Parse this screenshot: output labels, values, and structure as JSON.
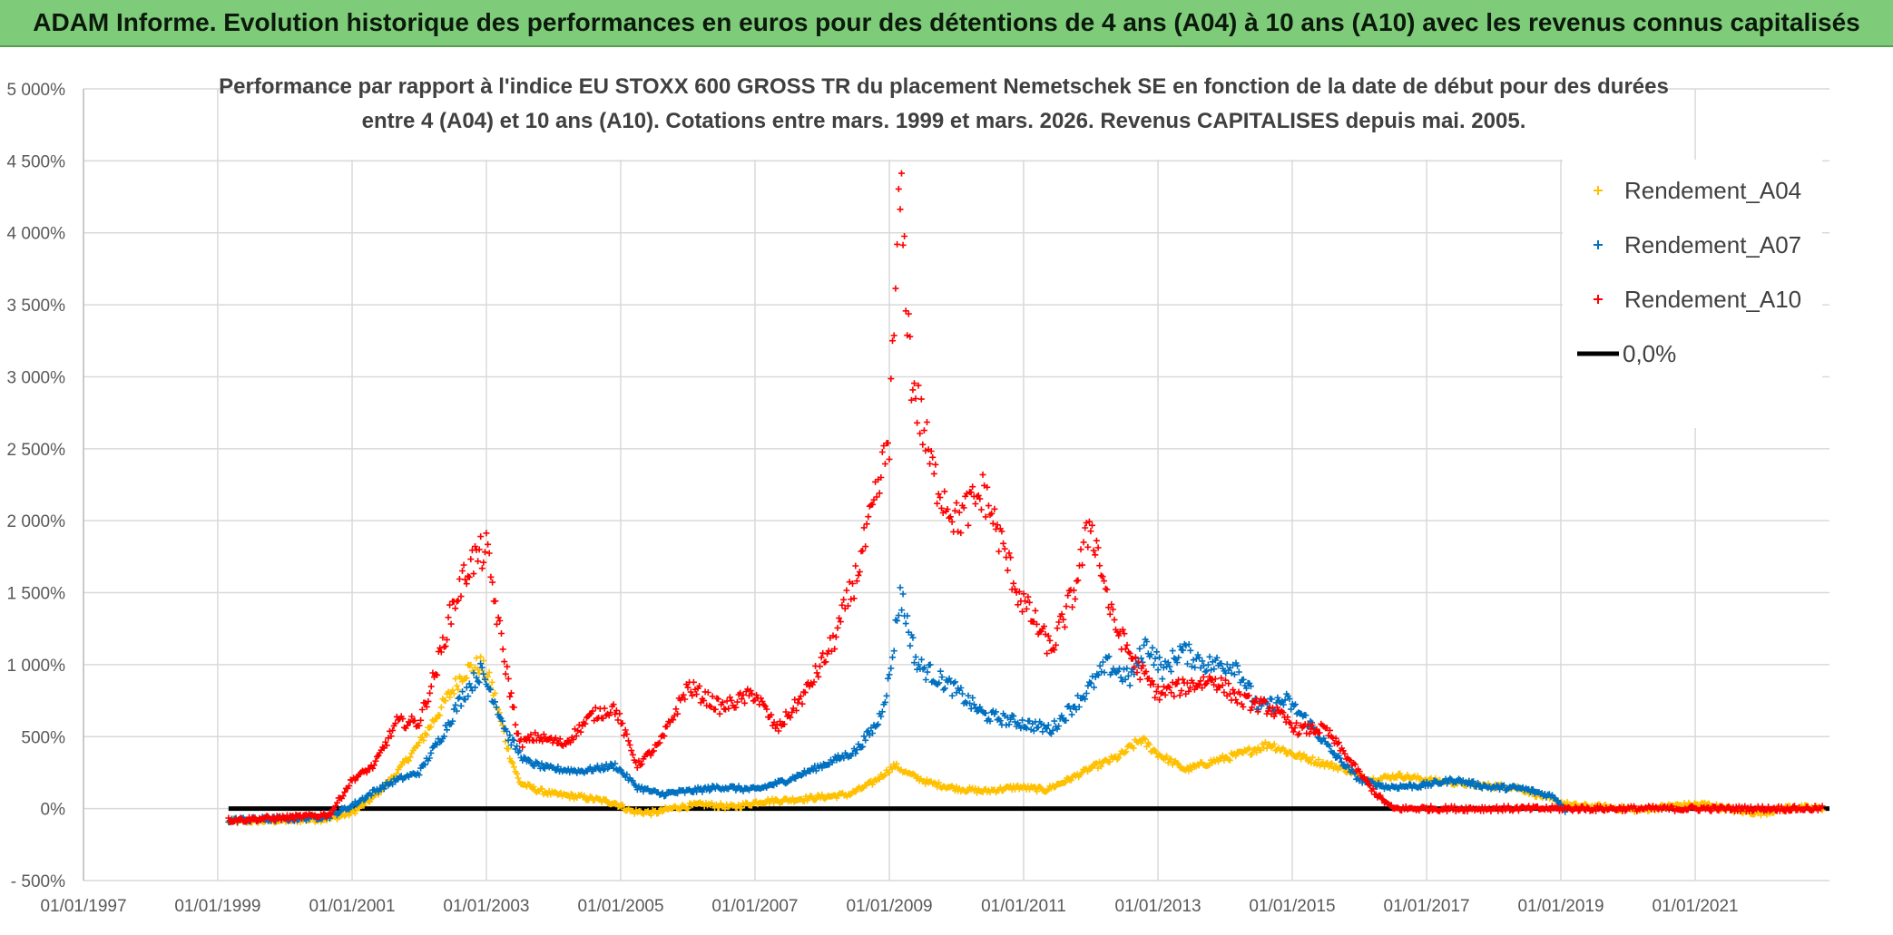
{
  "header": {
    "banner_title": "ADAM Informe. Evolution historique des performances en euros pour des détentions de 4 ans (A04) à 10 ans (A10) avec les revenus connus capitalisés"
  },
  "colors": {
    "banner_bg": "#7ecb7a",
    "series_a04": "#ffc000",
    "series_a07": "#0070c0",
    "series_a10": "#ff0000",
    "zero_line": "#000000",
    "grid": "#d9d9d9"
  },
  "chart_data": {
    "type": "scatter",
    "title_line1": "Performance par rapport à l'indice EU STOXX 600 GROSS TR  du placement Nemetschek SE en fonction de la date de début pour des durées",
    "title_line2": "entre 4 (A04) et 10 ans (A10). Cotations entre mars. 1999 et mars. 2026. Revenus CAPITALISES depuis mai. 2005.",
    "x_axis": {
      "type": "date",
      "min": "1997-01-01",
      "max": "2023-01-01",
      "ticks": [
        "01/01/1997",
        "01/01/1999",
        "01/01/2001",
        "01/01/2003",
        "01/01/2005",
        "01/01/2007",
        "01/01/2009",
        "01/01/2011",
        "01/01/2013",
        "01/01/2015",
        "01/01/2017",
        "01/01/2019",
        "01/01/2021"
      ]
    },
    "y_axis": {
      "min": -500,
      "max": 5000,
      "unit": "%",
      "ticks": [
        "- 500%",
        "0%",
        "500%",
        "1 000%",
        "1 500%",
        "2 000%",
        "2 500%",
        "3 000%",
        "3 500%",
        "4 000%",
        "4 500%",
        "5 000%"
      ]
    },
    "grid": true,
    "legend_position": "top-right",
    "series": [
      {
        "name": "Rendement_A04",
        "color": "#ffc000",
        "points": [
          [
            "1999-03-01",
            -90
          ],
          [
            "1999-09-01",
            -85
          ],
          [
            "2000-03-01",
            -80
          ],
          [
            "2000-09-01",
            -70
          ],
          [
            "2001-01-01",
            -30
          ],
          [
            "2001-05-01",
            80
          ],
          [
            "2001-09-01",
            250
          ],
          [
            "2002-01-01",
            450
          ],
          [
            "2002-05-01",
            700
          ],
          [
            "2002-09-01",
            950
          ],
          [
            "2002-12-01",
            1000
          ],
          [
            "2003-02-01",
            850
          ],
          [
            "2003-05-01",
            400
          ],
          [
            "2003-07-01",
            180
          ],
          [
            "2003-10-01",
            130
          ],
          [
            "2004-01-01",
            100
          ],
          [
            "2004-06-01",
            80
          ],
          [
            "2004-12-01",
            40
          ],
          [
            "2005-03-01",
            -20
          ],
          [
            "2005-07-01",
            -30
          ],
          [
            "2005-11-01",
            10
          ],
          [
            "2006-04-01",
            30
          ],
          [
            "2006-09-01",
            10
          ],
          [
            "2007-02-01",
            50
          ],
          [
            "2007-07-01",
            60
          ],
          [
            "2008-01-01",
            80
          ],
          [
            "2008-06-01",
            100
          ],
          [
            "2008-10-01",
            180
          ],
          [
            "2009-02-01",
            300
          ],
          [
            "2009-04-01",
            250
          ],
          [
            "2009-08-01",
            180
          ],
          [
            "2010-01-01",
            140
          ],
          [
            "2010-06-01",
            120
          ],
          [
            "2010-12-01",
            150
          ],
          [
            "2011-05-01",
            130
          ],
          [
            "2011-09-01",
            200
          ],
          [
            "2012-01-01",
            280
          ],
          [
            "2012-06-01",
            360
          ],
          [
            "2012-10-01",
            480
          ],
          [
            "2013-01-01",
            380
          ],
          [
            "2013-06-01",
            270
          ],
          [
            "2013-11-01",
            330
          ],
          [
            "2014-04-01",
            380
          ],
          [
            "2014-09-01",
            450
          ],
          [
            "2015-01-01",
            380
          ],
          [
            "2015-06-01",
            320
          ],
          [
            "2015-10-01",
            280
          ],
          [
            "2016-03-01",
            200
          ],
          [
            "2016-08-01",
            230
          ],
          [
            "2017-01-01",
            200
          ],
          [
            "2017-06-01",
            180
          ],
          [
            "2017-11-01",
            160
          ],
          [
            "2018-05-01",
            150
          ],
          [
            "2018-10-01",
            80
          ],
          [
            "2019-03-01",
            20
          ],
          [
            "2019-09-01",
            10
          ],
          [
            "2020-03-01",
            -10
          ],
          [
            "2020-09-01",
            20
          ],
          [
            "2021-03-01",
            30
          ],
          [
            "2021-09-01",
            -20
          ],
          [
            "2022-01-01",
            -30
          ],
          [
            "2022-06-01",
            10
          ],
          [
            "2022-12-01",
            0
          ]
        ]
      },
      {
        "name": "Rendement_A07",
        "color": "#0070c0",
        "points": [
          [
            "1999-03-01",
            -80
          ],
          [
            "1999-09-01",
            -75
          ],
          [
            "2000-03-01",
            -70
          ],
          [
            "2000-09-01",
            -50
          ],
          [
            "2001-01-01",
            20
          ],
          [
            "2001-05-01",
            120
          ],
          [
            "2001-09-01",
            200
          ],
          [
            "2002-01-01",
            250
          ],
          [
            "2002-05-01",
            500
          ],
          [
            "2002-09-01",
            800
          ],
          [
            "2002-12-01",
            950
          ],
          [
            "2003-02-01",
            800
          ],
          [
            "2003-05-01",
            500
          ],
          [
            "2003-08-01",
            330
          ],
          [
            "2003-12-01",
            280
          ],
          [
            "2004-06-01",
            260
          ],
          [
            "2004-12-01",
            300
          ],
          [
            "2005-04-01",
            150
          ],
          [
            "2005-08-01",
            100
          ],
          [
            "2006-01-01",
            120
          ],
          [
            "2006-07-01",
            150
          ],
          [
            "2007-01-01",
            130
          ],
          [
            "2007-07-01",
            200
          ],
          [
            "2008-01-01",
            300
          ],
          [
            "2008-07-01",
            400
          ],
          [
            "2008-11-01",
            600
          ],
          [
            "2009-01-01",
            900
          ],
          [
            "2009-03-01",
            1500
          ],
          [
            "2009-06-01",
            1000
          ],
          [
            "2009-12-01",
            850
          ],
          [
            "2010-06-01",
            650
          ],
          [
            "2010-12-01",
            600
          ],
          [
            "2011-06-01",
            550
          ],
          [
            "2011-12-01",
            800
          ],
          [
            "2012-04-01",
            1000
          ],
          [
            "2012-08-01",
            900
          ],
          [
            "2012-11-01",
            1150
          ],
          [
            "2013-02-01",
            950
          ],
          [
            "2013-05-01",
            1100
          ],
          [
            "2013-10-01",
            1000
          ],
          [
            "2014-03-01",
            1000
          ],
          [
            "2014-07-01",
            700
          ],
          [
            "2014-12-01",
            750
          ],
          [
            "2015-04-01",
            600
          ],
          [
            "2015-08-01",
            400
          ],
          [
            "2016-01-01",
            200
          ],
          [
            "2016-06-01",
            150
          ],
          [
            "2016-12-01",
            160
          ],
          [
            "2017-06-01",
            200
          ],
          [
            "2017-12-01",
            150
          ],
          [
            "2018-06-01",
            140
          ],
          [
            "2018-12-01",
            80
          ],
          [
            "2019-02-01",
            -20
          ]
        ]
      },
      {
        "name": "Rendement_A10",
        "color": "#ff0000",
        "points": [
          [
            "1999-03-01",
            -80
          ],
          [
            "1999-09-01",
            -70
          ],
          [
            "2000-03-01",
            -60
          ],
          [
            "2000-09-01",
            -40
          ],
          [
            "2001-01-01",
            200
          ],
          [
            "2001-05-01",
            300
          ],
          [
            "2001-09-01",
            600
          ],
          [
            "2002-01-01",
            600
          ],
          [
            "2002-04-01",
            950
          ],
          [
            "2002-07-01",
            1400
          ],
          [
            "2002-10-01",
            1700
          ],
          [
            "2003-01-01",
            1800
          ],
          [
            "2003-04-01",
            1100
          ],
          [
            "2003-07-01",
            450
          ],
          [
            "2003-10-01",
            500
          ],
          [
            "2004-03-01",
            450
          ],
          [
            "2004-08-01",
            650
          ],
          [
            "2004-12-01",
            700
          ],
          [
            "2005-04-01",
            300
          ],
          [
            "2005-08-01",
            450
          ],
          [
            "2006-01-01",
            850
          ],
          [
            "2006-07-01",
            700
          ],
          [
            "2007-01-01",
            800
          ],
          [
            "2007-05-01",
            550
          ],
          [
            "2007-10-01",
            800
          ],
          [
            "2008-03-01",
            1150
          ],
          [
            "2008-07-01",
            1600
          ],
          [
            "2008-11-01",
            2200
          ],
          [
            "2009-01-01",
            2600
          ],
          [
            "2009-03-01",
            4300
          ],
          [
            "2009-05-01",
            3000
          ],
          [
            "2009-09-01",
            2300
          ],
          [
            "2010-01-01",
            2000
          ],
          [
            "2010-06-01",
            2200
          ],
          [
            "2010-12-01",
            1500
          ],
          [
            "2011-06-01",
            1100
          ],
          [
            "2011-10-01",
            1500
          ],
          [
            "2012-01-01",
            2000
          ],
          [
            "2012-05-01",
            1300
          ],
          [
            "2012-09-01",
            1000
          ],
          [
            "2013-01-01",
            800
          ],
          [
            "2013-06-01",
            850
          ],
          [
            "2013-11-01",
            900
          ],
          [
            "2014-04-01",
            750
          ],
          [
            "2014-09-01",
            700
          ],
          [
            "2015-02-01",
            550
          ],
          [
            "2015-07-01",
            550
          ],
          [
            "2015-12-01",
            300
          ],
          [
            "2016-04-01",
            100
          ],
          [
            "2016-07-01",
            0
          ],
          [
            "2017-06-01",
            0
          ],
          [
            "2018-06-01",
            0
          ],
          [
            "2019-06-01",
            0
          ],
          [
            "2020-06-01",
            0
          ],
          [
            "2021-06-01",
            0
          ],
          [
            "2022-12-01",
            0
          ]
        ]
      },
      {
        "name": "0,0%",
        "color": "#000000",
        "line": true,
        "points": [
          [
            "1999-03-01",
            0
          ],
          [
            "2023-01-01",
            0
          ]
        ]
      }
    ]
  }
}
